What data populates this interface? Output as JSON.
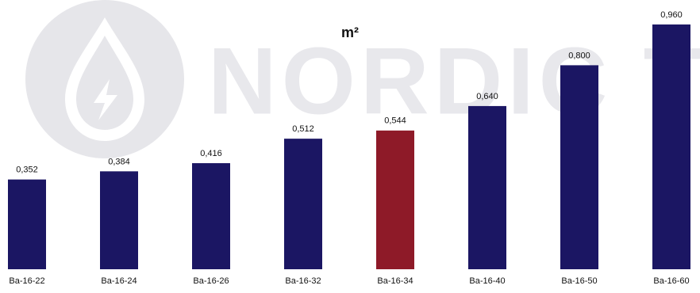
{
  "chart_data": {
    "type": "bar",
    "title": "m²",
    "watermark": "NORDIC TEC",
    "categories": [
      "Ba-16-22",
      "Ba-16-24",
      "Ba-16-26",
      "Ba-16-32",
      "Ba-16-34",
      "Ba-16-40",
      "Ba-16-50",
      "Ba-16-60"
    ],
    "values": [
      0.352,
      0.384,
      0.416,
      0.512,
      0.544,
      0.64,
      0.8,
      0.96
    ],
    "value_labels": [
      "0,352",
      "0,384",
      "0,416",
      "0,512",
      "0,544",
      "0,640",
      "0,800",
      "0,960"
    ],
    "colors": [
      "#1b1663",
      "#1b1663",
      "#1b1663",
      "#1b1663",
      "#8e1a28",
      "#1b1663",
      "#1b1663",
      "#1b1663"
    ],
    "ylim": [
      0,
      1
    ]
  }
}
